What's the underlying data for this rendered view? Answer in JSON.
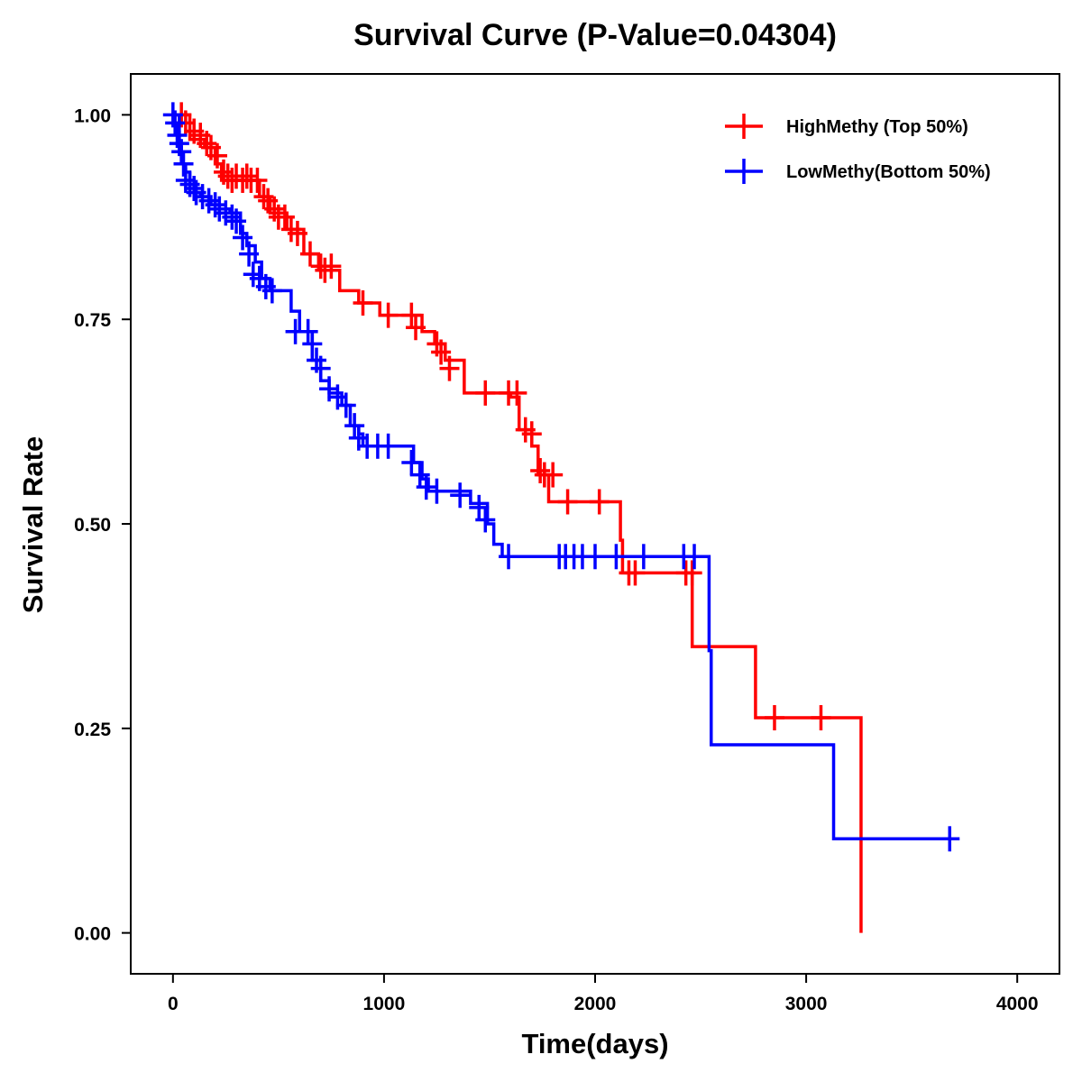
{
  "chart_data": {
    "type": "line",
    "subtype": "kaplan-meier",
    "title": "Survival Curve (P-Value=0.04304)",
    "xlabel": "Time(days)",
    "ylabel": "Survival Rate",
    "xlim": [
      -200,
      4200
    ],
    "ylim": [
      -0.05,
      1.05
    ],
    "xticks": [
      0,
      1000,
      2000,
      3000,
      4000
    ],
    "xtick_labels": [
      "0",
      "1000",
      "2000",
      "3000",
      "4000"
    ],
    "yticks": [
      0,
      0.25,
      0.5,
      0.75,
      1.0
    ],
    "ytick_labels": [
      "0.00",
      "0.25",
      "0.50",
      "0.75",
      "1.00"
    ],
    "grid": false,
    "legend_position": "top-right",
    "series": [
      {
        "name": "HighMethy (Top 50%)",
        "color": "#ff0000",
        "steps": [
          [
            0,
            1.0
          ],
          [
            80,
            0.97
          ],
          [
            150,
            0.96
          ],
          [
            200,
            0.94
          ],
          [
            230,
            0.92
          ],
          [
            290,
            0.92
          ],
          [
            410,
            0.9
          ],
          [
            460,
            0.88
          ],
          [
            540,
            0.86
          ],
          [
            620,
            0.83
          ],
          [
            690,
            0.81
          ],
          [
            790,
            0.785
          ],
          [
            880,
            0.77
          ],
          [
            980,
            0.755
          ],
          [
            1180,
            0.735
          ],
          [
            1240,
            0.72
          ],
          [
            1290,
            0.7
          ],
          [
            1380,
            0.66
          ],
          [
            1600,
            0.655
          ],
          [
            1640,
            0.615
          ],
          [
            1700,
            0.595
          ],
          [
            1730,
            0.56
          ],
          [
            1780,
            0.527
          ],
          [
            2120,
            0.48
          ],
          [
            2130,
            0.44
          ],
          [
            2460,
            0.35
          ],
          [
            2760,
            0.263
          ],
          [
            3260,
            0.0
          ]
        ],
        "censored": [
          [
            40,
            1.0
          ],
          [
            60,
            0.99
          ],
          [
            100,
            0.98
          ],
          [
            130,
            0.975
          ],
          [
            160,
            0.965
          ],
          [
            180,
            0.96
          ],
          [
            210,
            0.95
          ],
          [
            240,
            0.93
          ],
          [
            260,
            0.925
          ],
          [
            280,
            0.92
          ],
          [
            300,
            0.925
          ],
          [
            330,
            0.92
          ],
          [
            350,
            0.925
          ],
          [
            370,
            0.92
          ],
          [
            400,
            0.92
          ],
          [
            430,
            0.9
          ],
          [
            450,
            0.895
          ],
          [
            480,
            0.885
          ],
          [
            500,
            0.875
          ],
          [
            530,
            0.875
          ],
          [
            560,
            0.86
          ],
          [
            590,
            0.855
          ],
          [
            650,
            0.83
          ],
          [
            700,
            0.815
          ],
          [
            720,
            0.81
          ],
          [
            750,
            0.815
          ],
          [
            900,
            0.77
          ],
          [
            1020,
            0.755
          ],
          [
            1130,
            0.755
          ],
          [
            1150,
            0.74
          ],
          [
            1250,
            0.72
          ],
          [
            1270,
            0.71
          ],
          [
            1310,
            0.69
          ],
          [
            1480,
            0.66
          ],
          [
            1590,
            0.66
          ],
          [
            1630,
            0.66
          ],
          [
            1670,
            0.615
          ],
          [
            1700,
            0.61
          ],
          [
            1740,
            0.565
          ],
          [
            1760,
            0.56
          ],
          [
            1800,
            0.56
          ],
          [
            1870,
            0.527
          ],
          [
            2020,
            0.527
          ],
          [
            2160,
            0.44
          ],
          [
            2190,
            0.44
          ],
          [
            2430,
            0.44
          ],
          [
            2460,
            0.44
          ],
          [
            2850,
            0.263
          ],
          [
            3070,
            0.263
          ]
        ]
      },
      {
        "name": "LowMethy(Bottom 50%)",
        "color": "#0000ff",
        "steps": [
          [
            0,
            1.0
          ],
          [
            30,
            0.96
          ],
          [
            40,
            0.94
          ],
          [
            60,
            0.93
          ],
          [
            80,
            0.915
          ],
          [
            100,
            0.905
          ],
          [
            130,
            0.9
          ],
          [
            180,
            0.89
          ],
          [
            220,
            0.885
          ],
          [
            270,
            0.88
          ],
          [
            320,
            0.855
          ],
          [
            350,
            0.84
          ],
          [
            390,
            0.82
          ],
          [
            420,
            0.8
          ],
          [
            460,
            0.785
          ],
          [
            560,
            0.76
          ],
          [
            600,
            0.735
          ],
          [
            660,
            0.7
          ],
          [
            700,
            0.675
          ],
          [
            740,
            0.66
          ],
          [
            800,
            0.645
          ],
          [
            840,
            0.62
          ],
          [
            880,
            0.61
          ],
          [
            900,
            0.595
          ],
          [
            1140,
            0.575
          ],
          [
            1180,
            0.555
          ],
          [
            1210,
            0.54
          ],
          [
            1410,
            0.525
          ],
          [
            1490,
            0.5
          ],
          [
            1520,
            0.475
          ],
          [
            1560,
            0.46
          ],
          [
            2540,
            0.345
          ],
          [
            2550,
            0.23
          ],
          [
            3130,
            0.115
          ]
        ],
        "censored": [
          [
            0,
            1.0
          ],
          [
            10,
            0.99
          ],
          [
            20,
            0.975
          ],
          [
            30,
            0.965
          ],
          [
            40,
            0.955
          ],
          [
            50,
            0.94
          ],
          [
            60,
            0.92
          ],
          [
            80,
            0.915
          ],
          [
            100,
            0.91
          ],
          [
            110,
            0.905
          ],
          [
            140,
            0.9
          ],
          [
            170,
            0.895
          ],
          [
            200,
            0.89
          ],
          [
            220,
            0.885
          ],
          [
            250,
            0.88
          ],
          [
            280,
            0.875
          ],
          [
            300,
            0.87
          ],
          [
            330,
            0.85
          ],
          [
            360,
            0.83
          ],
          [
            380,
            0.805
          ],
          [
            410,
            0.8
          ],
          [
            440,
            0.79
          ],
          [
            470,
            0.785
          ],
          [
            580,
            0.735
          ],
          [
            640,
            0.735
          ],
          [
            660,
            0.72
          ],
          [
            680,
            0.7
          ],
          [
            700,
            0.69
          ],
          [
            740,
            0.665
          ],
          [
            780,
            0.655
          ],
          [
            820,
            0.645
          ],
          [
            860,
            0.62
          ],
          [
            880,
            0.605
          ],
          [
            920,
            0.595
          ],
          [
            970,
            0.595
          ],
          [
            1020,
            0.595
          ],
          [
            1130,
            0.575
          ],
          [
            1170,
            0.56
          ],
          [
            1200,
            0.545
          ],
          [
            1250,
            0.54
          ],
          [
            1360,
            0.535
          ],
          [
            1450,
            0.52
          ],
          [
            1480,
            0.505
          ],
          [
            1590,
            0.46
          ],
          [
            1830,
            0.46
          ],
          [
            1860,
            0.46
          ],
          [
            1900,
            0.46
          ],
          [
            1940,
            0.46
          ],
          [
            2000,
            0.46
          ],
          [
            2100,
            0.46
          ],
          [
            2230,
            0.46
          ],
          [
            2420,
            0.46
          ],
          [
            2470,
            0.46
          ],
          [
            3680,
            0.115
          ]
        ]
      }
    ]
  }
}
